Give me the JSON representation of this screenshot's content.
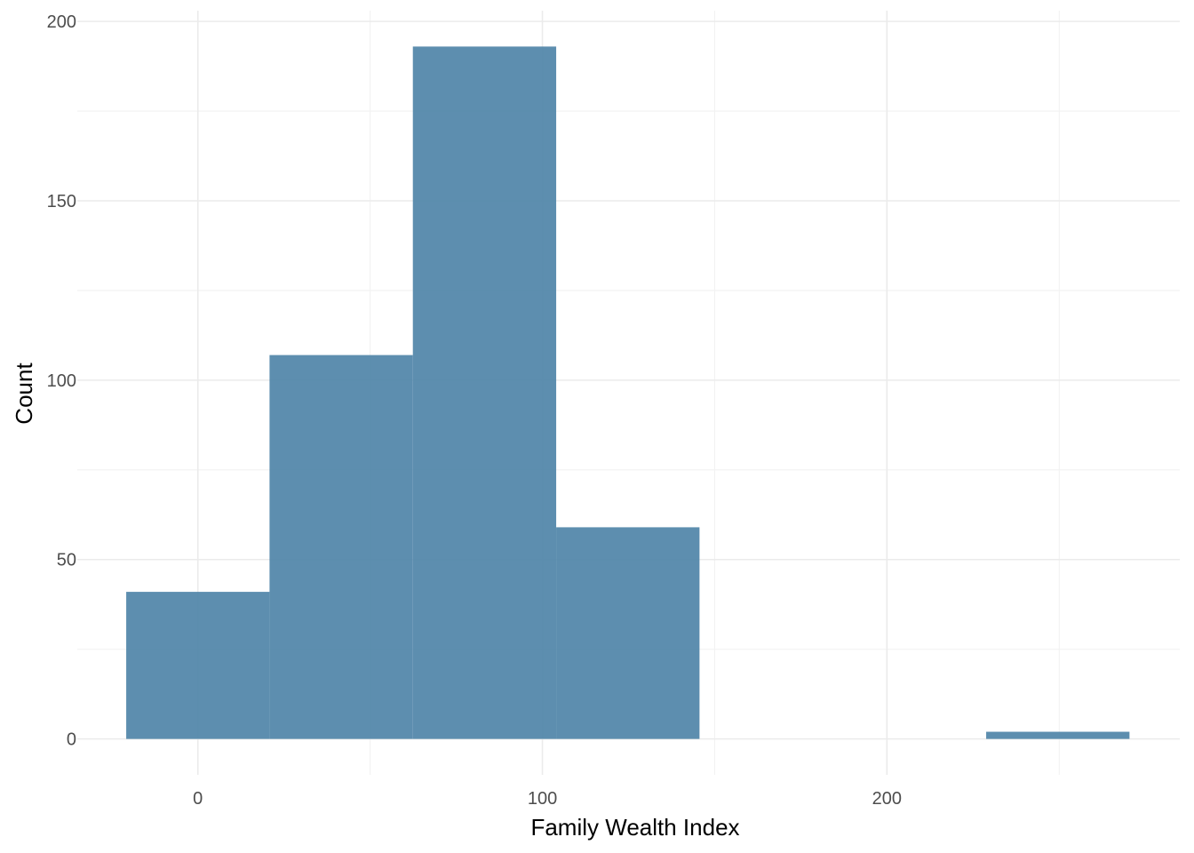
{
  "chart_data": {
    "type": "bar",
    "subtype": "histogram",
    "title": "",
    "xlabel": "Family Wealth Index",
    "ylabel": "Count",
    "xlim": [
      -35,
      285
    ],
    "ylim": [
      -10,
      203
    ],
    "x_ticks": [
      0,
      100,
      200
    ],
    "y_ticks": [
      0,
      50,
      100,
      150,
      200
    ],
    "x_minor_ticks": [
      50,
      150,
      250
    ],
    "y_minor_ticks": [
      25,
      75,
      125,
      175
    ],
    "grid": true,
    "bar_color": "#4f84a8",
    "bins": [
      {
        "x_start": -20.8,
        "x_end": 20.8,
        "count": 41
      },
      {
        "x_start": 20.8,
        "x_end": 62.4,
        "count": 107
      },
      {
        "x_start": 62.4,
        "x_end": 104.0,
        "count": 193
      },
      {
        "x_start": 104.0,
        "x_end": 145.6,
        "count": 59
      },
      {
        "x_start": 145.6,
        "x_end": 187.2,
        "count": 0
      },
      {
        "x_start": 187.2,
        "x_end": 228.8,
        "count": 0
      },
      {
        "x_start": 228.8,
        "x_end": 270.4,
        "count": 2
      }
    ]
  }
}
